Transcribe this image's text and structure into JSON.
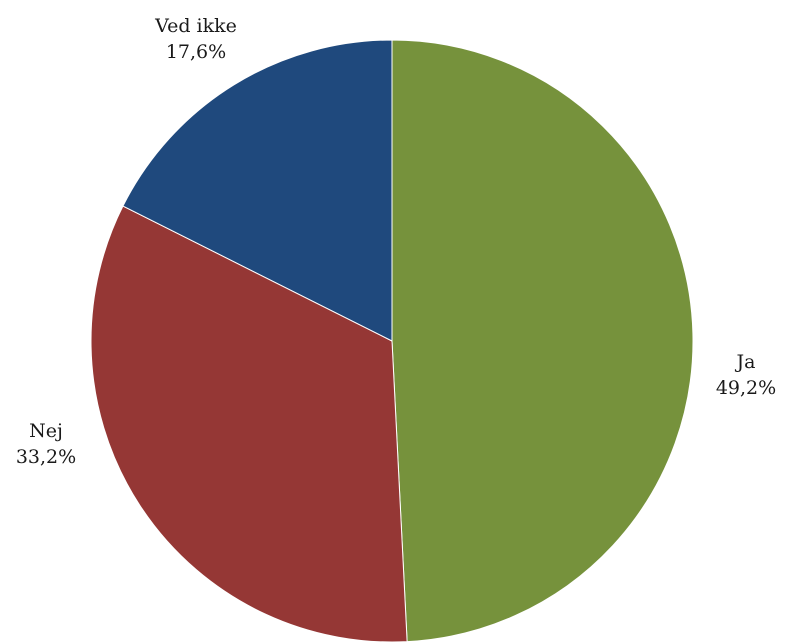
{
  "chart_data": {
    "type": "pie",
    "slices": [
      {
        "label": "Ja",
        "value": 49.2,
        "value_label": "49,2%",
        "color": "#76923c"
      },
      {
        "label": "Nej",
        "value": 33.2,
        "value_label": "33,2%",
        "color": "#953735"
      },
      {
        "label": "Ved ikke",
        "value": 17.6,
        "value_label": "17,6%",
        "color": "#1f497d"
      }
    ],
    "start": "12 o'clock",
    "direction": "clockwise",
    "legend": "none",
    "label_placement": "outside"
  }
}
